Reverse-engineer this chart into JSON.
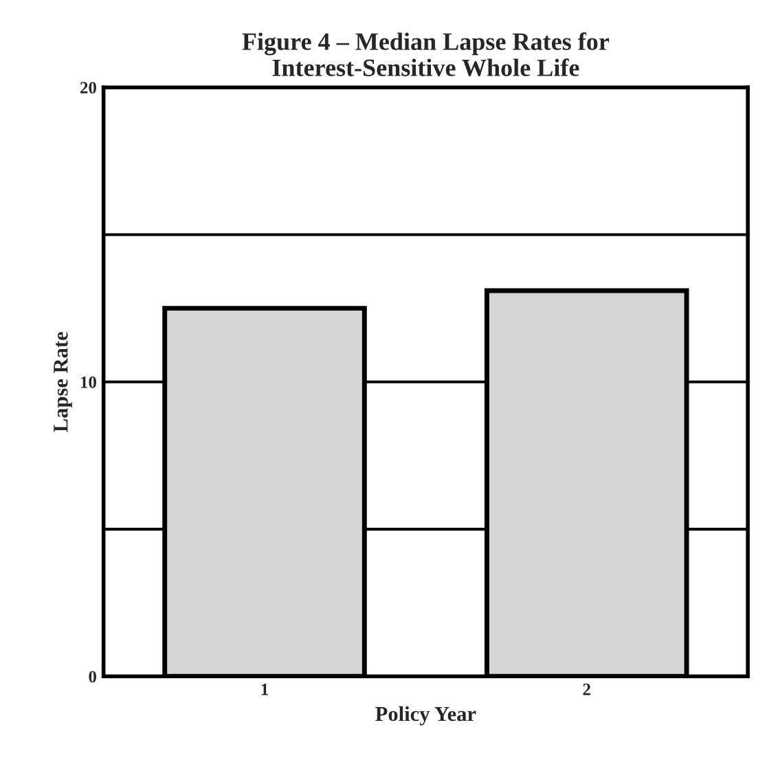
{
  "chart_data": {
    "type": "bar",
    "title": "Figure 4 – Median Lapse Rates for\nInterest-Sensitive Whole Life",
    "xlabel": "Policy Year",
    "ylabel": "Lapse Rate",
    "categories": [
      "1",
      "2"
    ],
    "values": [
      12.5,
      13.1
    ],
    "color": "#d6d6d6",
    "ylim": [
      0,
      20
    ],
    "yticks": [
      0,
      {
        "value": 5,
        "label": null
      },
      10,
      {
        "value": 15,
        "label": null
      },
      20
    ],
    "grid": "y"
  }
}
